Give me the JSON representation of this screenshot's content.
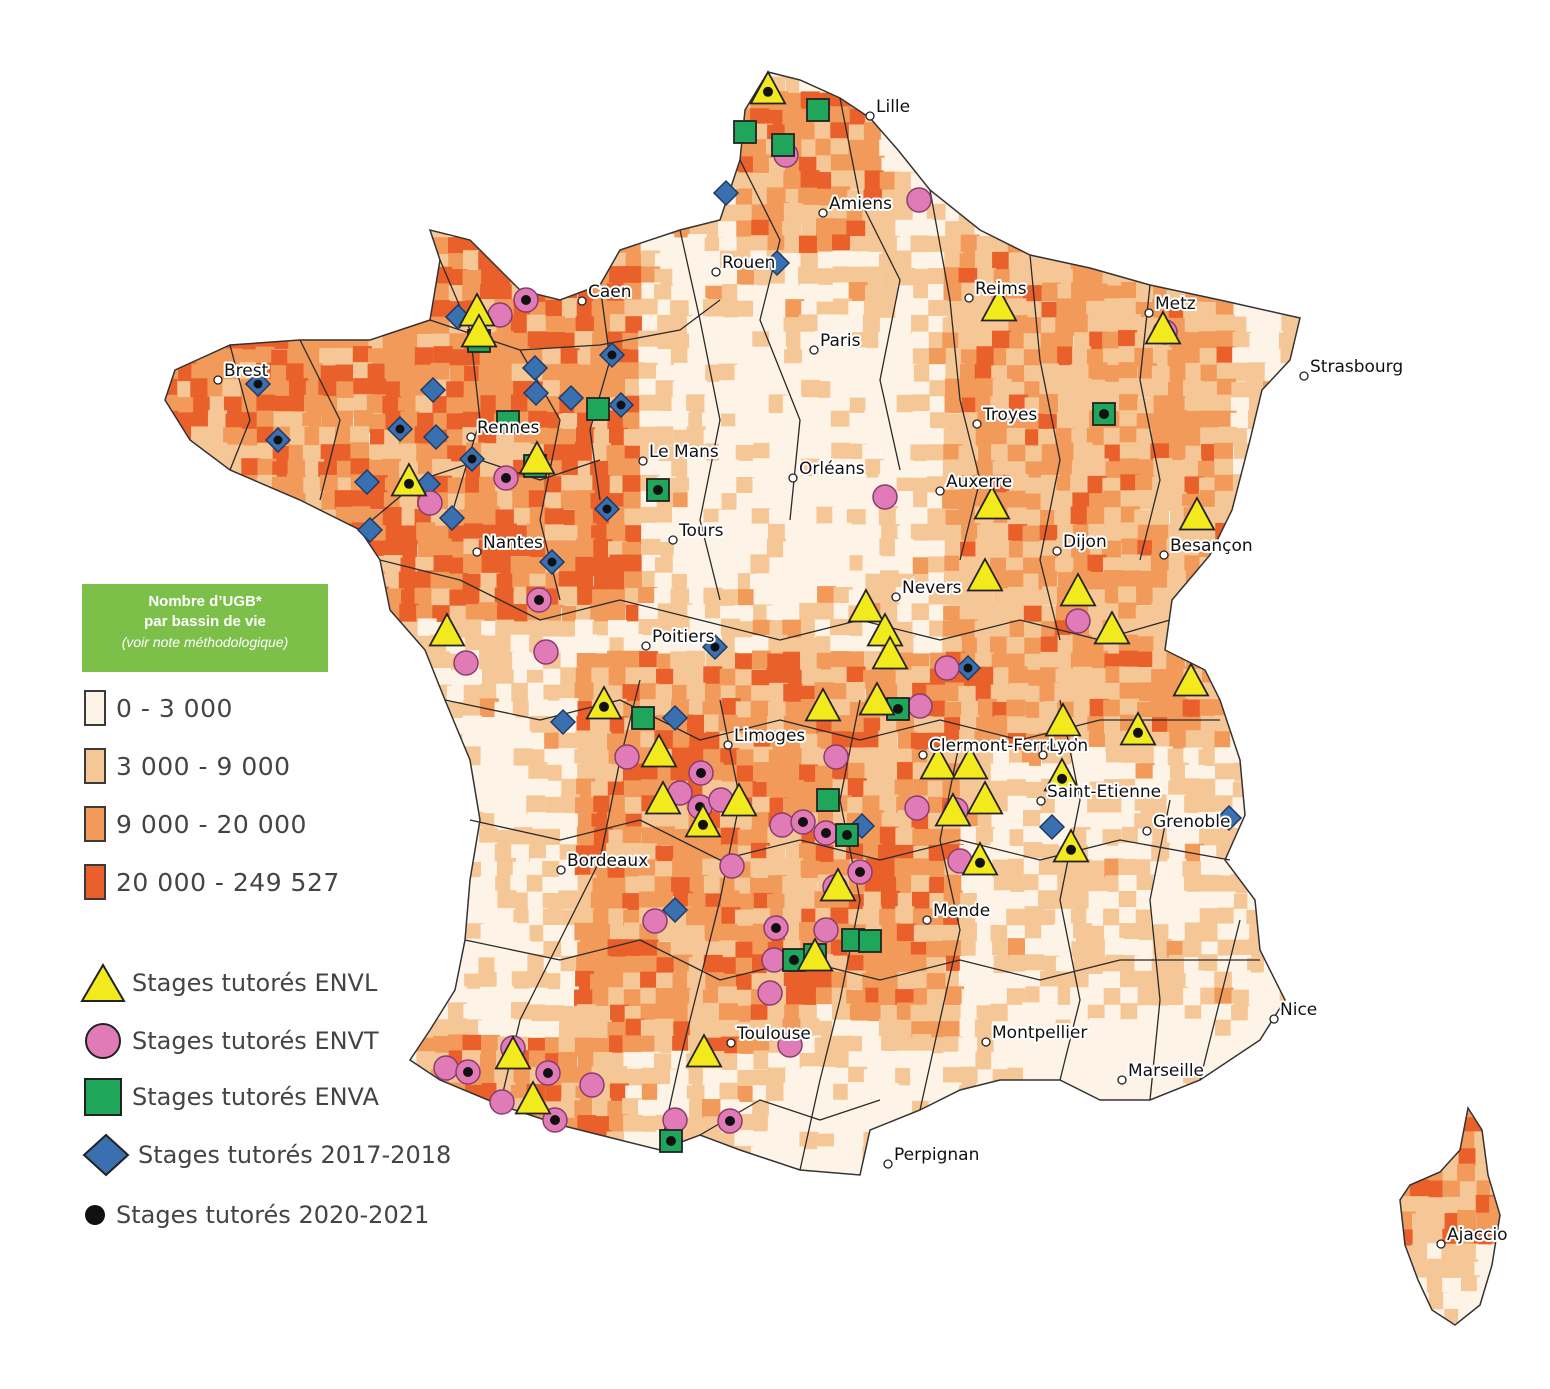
{
  "legend": {
    "title_line1": "Nombre d’UGB*",
    "title_line2": "par bassin de vie",
    "title_note": "(voir note méthodologique)",
    "classes": [
      {
        "label": "0 - 3 000",
        "color": "#fdf3e6"
      },
      {
        "label": "3 000 - 9 000",
        "color": "#f6c796"
      },
      {
        "label": "9 000 - 20 000",
        "color": "#f19a5a"
      },
      {
        "label": "20 000 - 249 527",
        "color": "#e9602a"
      }
    ],
    "symbols": [
      {
        "label": "Stages tutorés ENVL",
        "icon": "yellow-triangle",
        "color": "#f2ea1c"
      },
      {
        "label": "Stages tutorés ENVT",
        "icon": "pink-circle",
        "color": "#e07bb7"
      },
      {
        "label": "Stages tutorés ENVA",
        "icon": "green-square",
        "color": "#1fa65a"
      },
      {
        "label": "Stages tutorés 2017-2018",
        "icon": "blue-diamond",
        "color": "#3a6fb0"
      },
      {
        "label": "Stages tutorés 2020-2021",
        "icon": "black-dot",
        "color": "#111111"
      }
    ]
  },
  "cities": [
    "Lille",
    "Amiens",
    "Rouen",
    "Caen",
    "Reims",
    "Metz",
    "Strasbourg",
    "Paris",
    "Brest",
    "Rennes",
    "Le Mans",
    "Troyes",
    "Orléans",
    "Auxerre",
    "Tours",
    "Nantes",
    "Dijon",
    "Besançon",
    "Nevers",
    "Poitiers",
    "Limoges",
    "Clermont-Ferrand",
    "Lyon",
    "Saint-Etienne",
    "Grenoble",
    "Bordeaux",
    "Mende",
    "Toulouse",
    "Montpellier",
    "Nice",
    "Marseille",
    "Perpignan",
    "Ajaccio"
  ]
}
